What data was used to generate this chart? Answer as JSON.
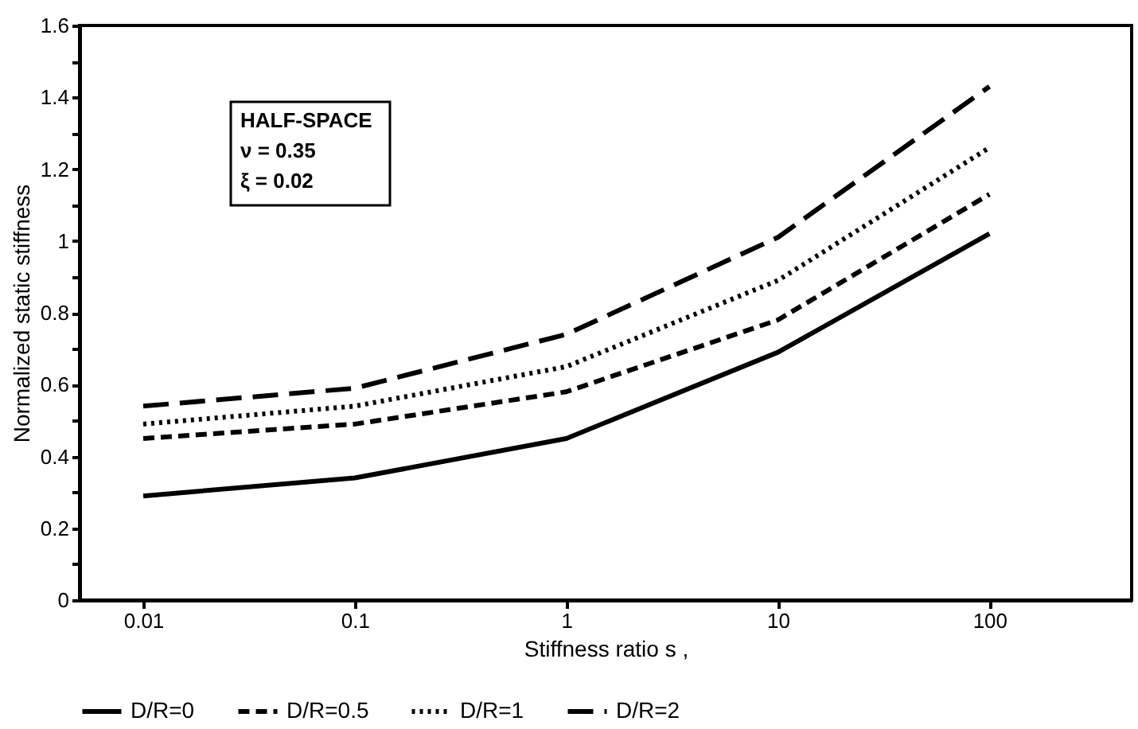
{
  "chart_data": {
    "type": "line",
    "xlabel": "Stiffness ratio s ,",
    "ylabel": "Normalized static stiffness",
    "x": [
      0.01,
      0.1,
      1,
      10,
      100
    ],
    "series": [
      {
        "name": "D/R=0",
        "color": "#000000",
        "line_style": "solid",
        "values": [
          0.29,
          0.34,
          0.45,
          0.69,
          1.02
        ]
      },
      {
        "name": "D/R=0.5",
        "color": "#000000",
        "line_style": "dashed",
        "values": [
          0.45,
          0.49,
          0.58,
          0.78,
          1.13
        ]
      },
      {
        "name": "D/R=1",
        "color": "#000000",
        "line_style": "dotted",
        "values": [
          0.49,
          0.54,
          0.65,
          0.89,
          1.26
        ]
      },
      {
        "name": "D/R=2",
        "color": "#000000",
        "line_style": "longdashed",
        "values": [
          0.54,
          0.59,
          0.74,
          1.01,
          1.43
        ]
      }
    ],
    "log": "x",
    "xlim": [
      0.005,
      470
    ],
    "xticks": [
      0.01,
      0.1,
      1,
      10,
      100
    ],
    "ylim": [
      0,
      1.6
    ],
    "yticks": [
      0,
      {
        "value": 0.1,
        "label": null
      },
      0.2,
      {
        "value": 0.3,
        "label": null
      },
      0.4,
      {
        "value": 0.5,
        "label": null
      },
      0.6,
      {
        "value": 0.7,
        "label": null
      },
      0.8,
      {
        "value": 0.9,
        "label": null
      },
      1,
      {
        "value": 1.1,
        "label": null
      },
      1.2,
      {
        "value": 1.3,
        "label": null
      },
      1.4,
      {
        "value": 1.5,
        "label": null
      },
      1.6
    ],
    "grid": false,
    "legend": "bottom",
    "marker": "none",
    "annotations": [
      "HALF-SPACE",
      "ν = 0.35",
      "ξ = 0.02"
    ]
  }
}
